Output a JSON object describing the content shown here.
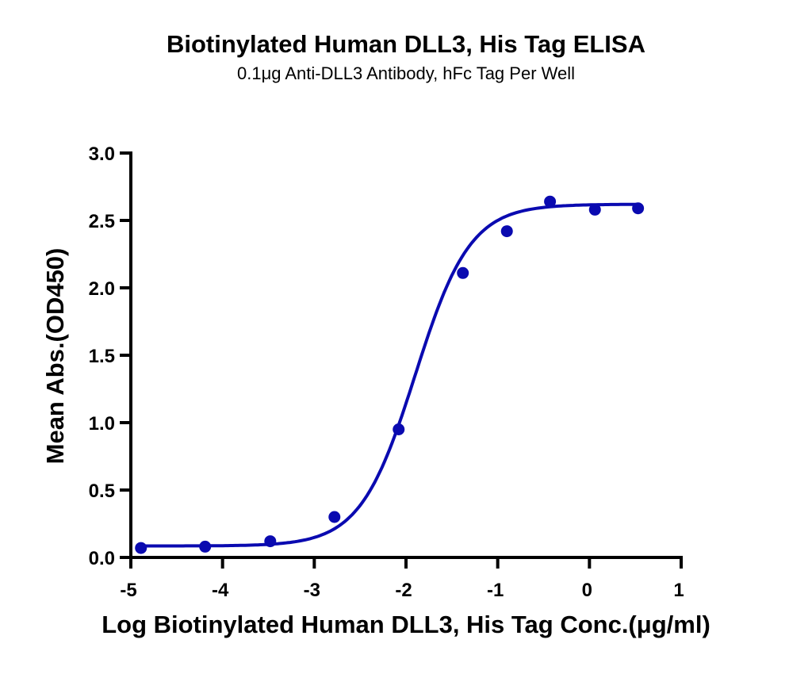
{
  "chart_data": {
    "type": "line",
    "title": "Biotinylated Human DLL3, His Tag ELISA",
    "subtitle": "0.1μg Anti-DLL3 Antibody, hFc Tag Per Well",
    "xlabel": "Log Biotinylated Human DLL3, His Tag Conc.(μg/ml)",
    "ylabel": "Mean Abs.(OD450)",
    "xlim": [
      -5,
      1
    ],
    "ylim": [
      0,
      3.0
    ],
    "xticks": [
      -5,
      -4,
      -3,
      -2,
      -1,
      0,
      1
    ],
    "xtick_labels": [
      "-5",
      "-4",
      "-3",
      "-2",
      "-1",
      "0",
      "1"
    ],
    "yticks": [
      0,
      0.5,
      1.0,
      1.5,
      2.0,
      2.5,
      3.0
    ],
    "ytick_labels": [
      "0.0",
      "0.5",
      "1.0",
      "1.5",
      "2.0",
      "2.5",
      "3.0"
    ],
    "grid": false,
    "legend": null,
    "color": "#0a0ab0",
    "series": [
      {
        "name": "Biotinylated Human DLL3, His Tag",
        "x": [
          -4.89,
          -4.19,
          -3.48,
          -2.78,
          -2.08,
          -1.38,
          -0.9,
          -0.43,
          0.06,
          0.53
        ],
        "y": [
          0.07,
          0.08,
          0.12,
          0.3,
          0.95,
          2.11,
          2.42,
          2.64,
          2.58,
          2.59
        ]
      }
    ],
    "fit": {
      "model": "4PL sigmoidal",
      "bottom": 0.085,
      "top": 2.62,
      "logEC50": -1.9,
      "hill": 1.45,
      "x_range": [
        -4.89,
        0.53
      ]
    }
  }
}
